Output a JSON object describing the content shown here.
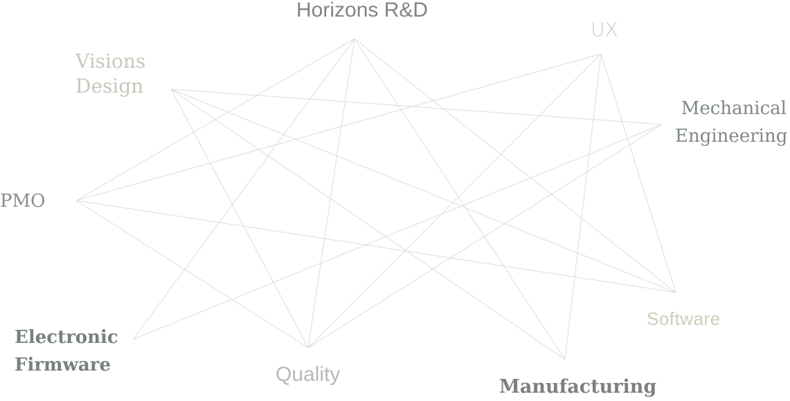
{
  "diagram": {
    "nodes": [
      {
        "id": "horizons",
        "label": "Horizons R&D",
        "color": "#808582"
      },
      {
        "id": "ux",
        "label": "UX",
        "color": "#c9c9c4"
      },
      {
        "id": "visions",
        "label_line1": "Visions",
        "label_line2": "Design",
        "color": "#c8c7bd"
      },
      {
        "id": "mech",
        "label_line1": "Mechanical",
        "label_line2": "Engineering",
        "color": "#7f8884"
      },
      {
        "id": "pmo",
        "label": "PMO",
        "color": "#8b8c8c"
      },
      {
        "id": "software",
        "label": "Software",
        "color": "#cfcbbd"
      },
      {
        "id": "electronic",
        "label_line1": "Electronic",
        "label_line2": "Firmware",
        "color": "#79817c"
      },
      {
        "id": "quality",
        "label": "Quality",
        "color": "#b7b9b6"
      },
      {
        "id": "manufacturing",
        "label": "Manufacturing",
        "color": "#7c817d"
      }
    ],
    "edges": [
      [
        "horizons",
        "pmo"
      ],
      [
        "horizons",
        "electronic"
      ],
      [
        "horizons",
        "quality"
      ],
      [
        "horizons",
        "manufacturing"
      ],
      [
        "horizons",
        "software"
      ],
      [
        "ux",
        "pmo"
      ],
      [
        "ux",
        "quality"
      ],
      [
        "ux",
        "software"
      ],
      [
        "ux",
        "manufacturing"
      ],
      [
        "visions",
        "mech"
      ],
      [
        "visions",
        "quality"
      ],
      [
        "visions",
        "manufacturing"
      ],
      [
        "visions",
        "software"
      ],
      [
        "mech",
        "electronic"
      ],
      [
        "mech",
        "quality"
      ],
      [
        "pmo",
        "software"
      ],
      [
        "pmo",
        "quality"
      ]
    ]
  }
}
